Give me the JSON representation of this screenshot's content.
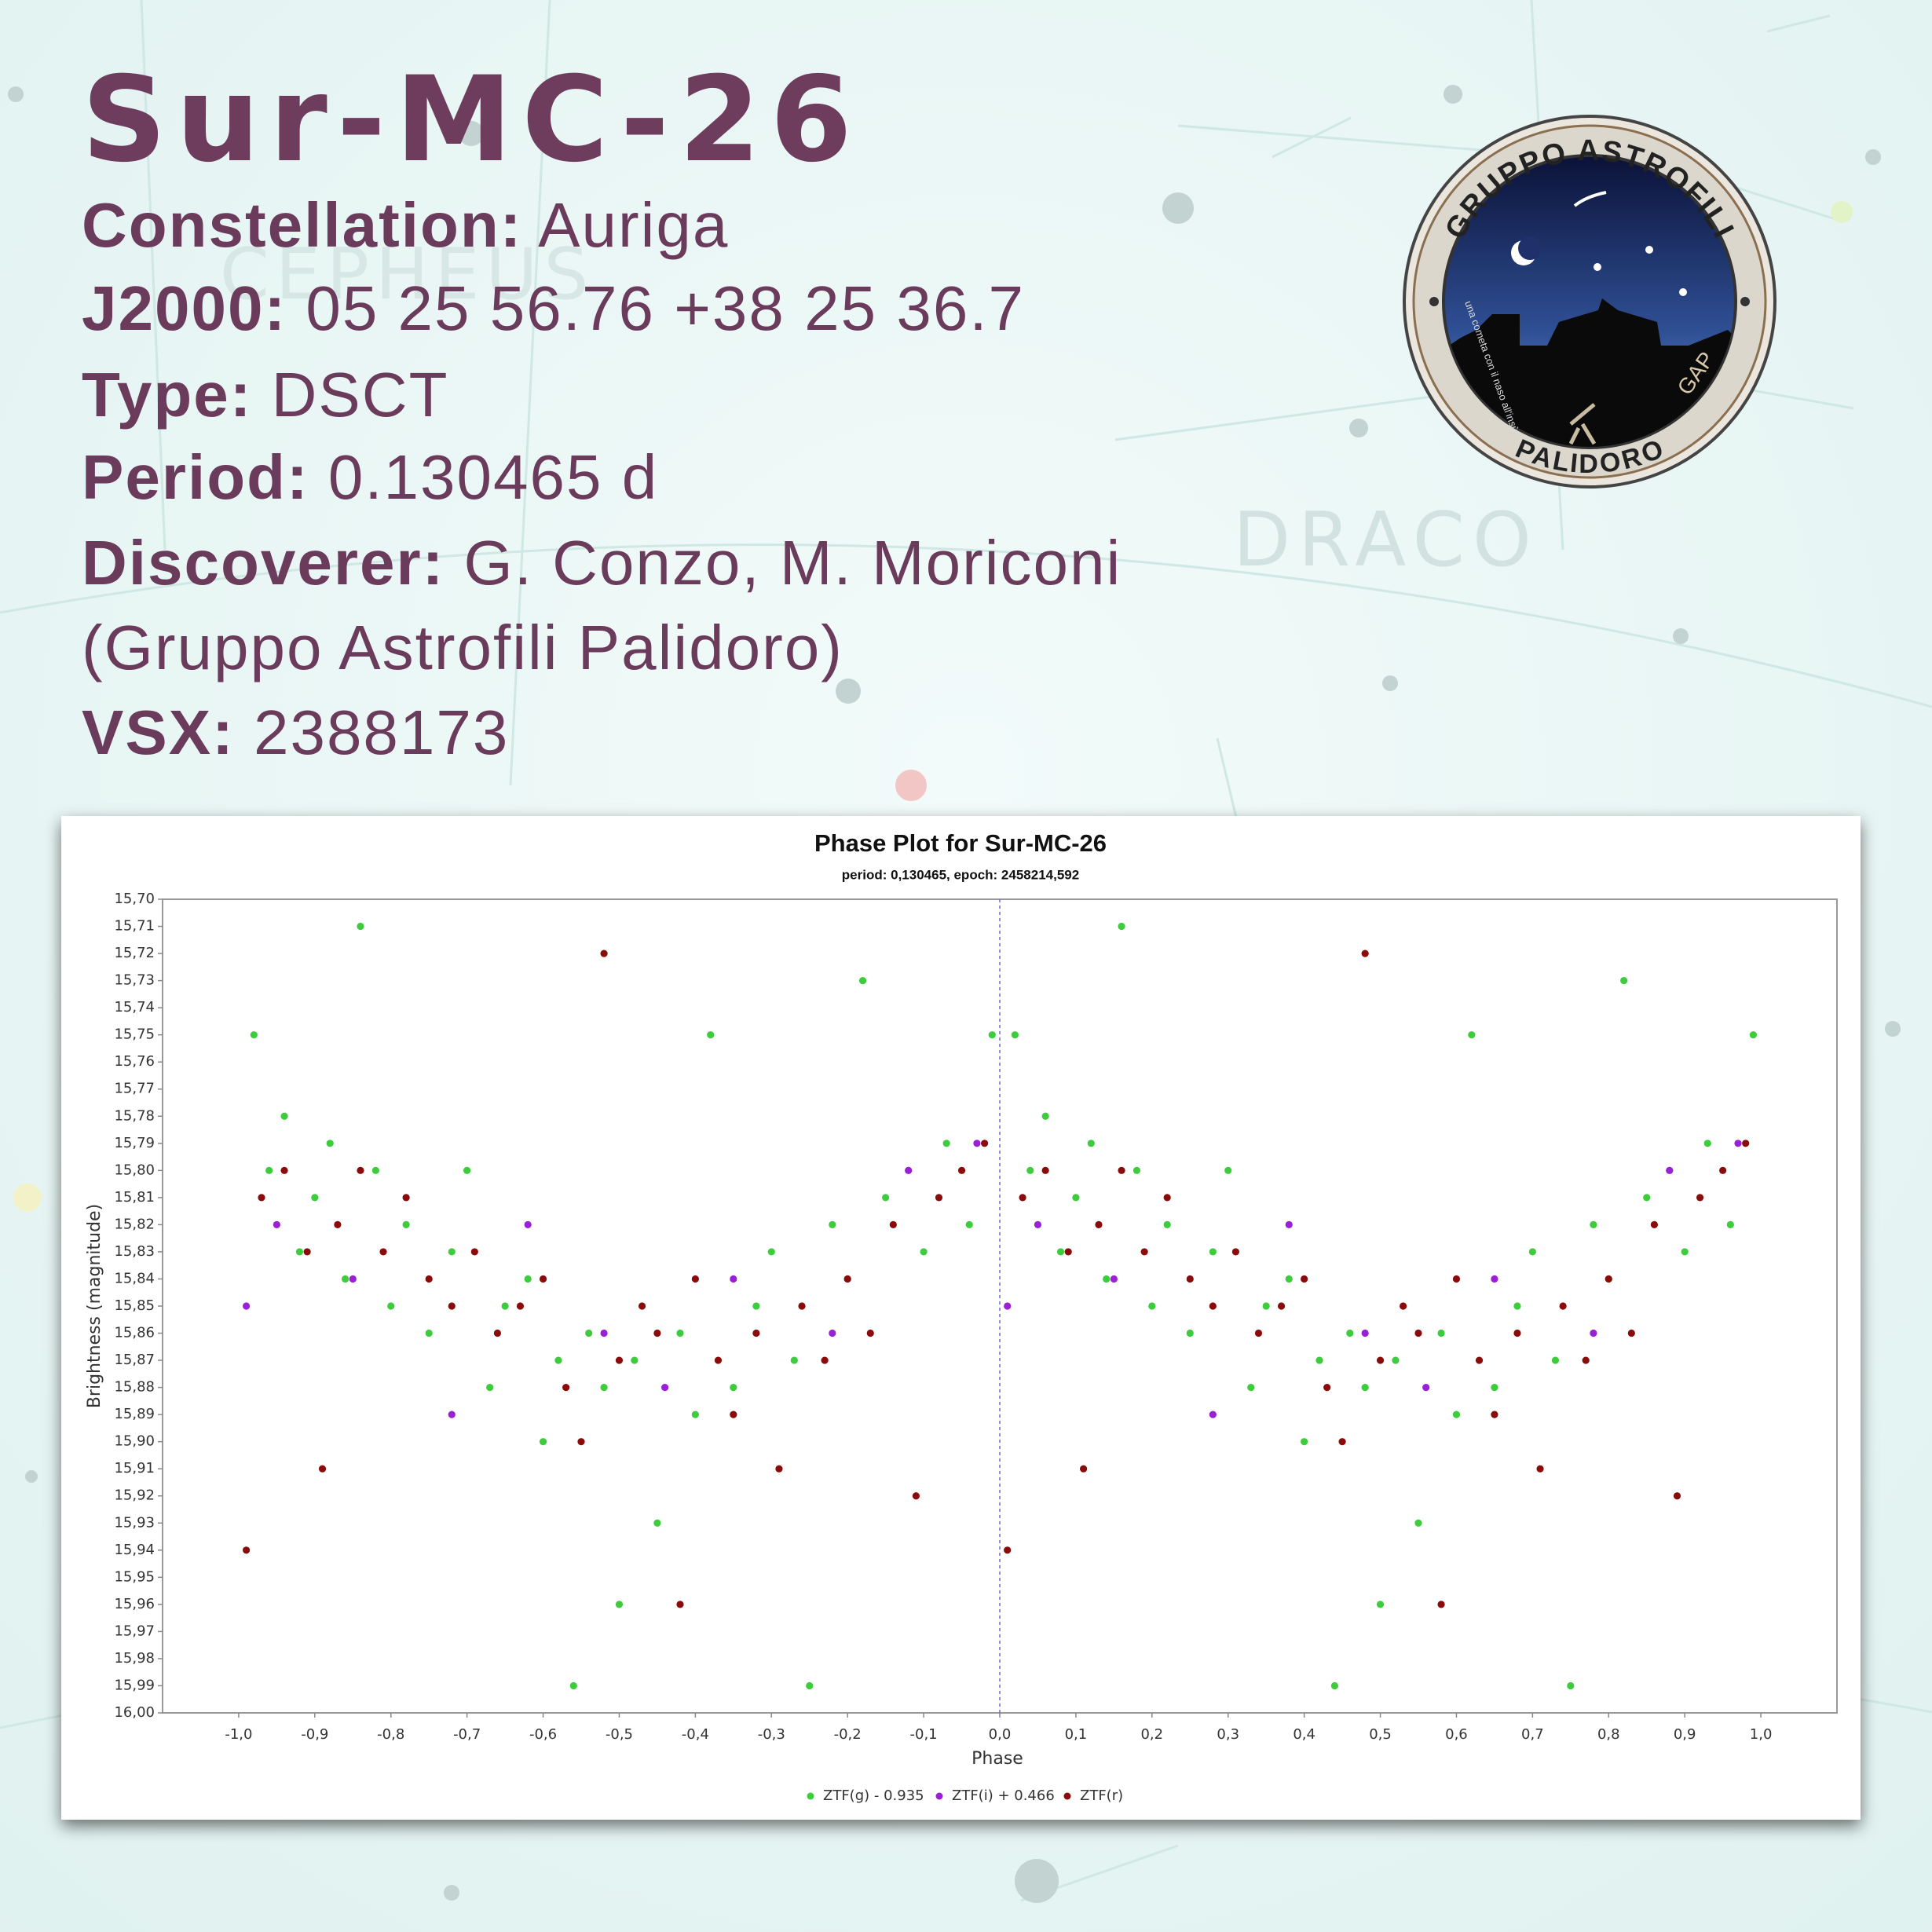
{
  "header": {
    "title": "Sur-MC-26",
    "fields": [
      {
        "label": "Constellation:",
        "value": "Auriga"
      },
      {
        "label": "J2000:",
        "value": "05 25 56.76 +38 25 36.7"
      },
      {
        "label": "Type:",
        "value": "DSCT"
      },
      {
        "label": "Period:",
        "value": "0.130465 d"
      },
      {
        "label": "Discoverer:",
        "value": "G. Conzo, M. Moriconi"
      }
    ],
    "affiliation": "(Gruppo Astrofili Palidoro)",
    "vsx": {
      "label": "VSX:",
      "value": "2388173"
    }
  },
  "logo": {
    "top": "GRUPPO ASTROFILI",
    "bottom": "PALIDORO",
    "side": "GAP",
    "motto": "una cometa con il naso all'insù"
  },
  "background": {
    "labels": [
      "CEPHEUS",
      "DRACO"
    ]
  },
  "chart_data": {
    "type": "scatter",
    "title": "Phase Plot for Sur-MC-26",
    "subtitle": "period: 0,130465, epoch: 2458214,592",
    "x_label": "Phase",
    "y_label": "Brightness (magnitude)",
    "xlim": [
      -1.1,
      1.1
    ],
    "ylim": [
      15.7,
      16.0
    ],
    "y_inverted": true,
    "grid": false,
    "legend": "bottom",
    "epoch_line": 0,
    "xticks": [
      {
        "value": -1.0,
        "label": "-1,0"
      },
      {
        "value": -0.9,
        "label": "-0,9"
      },
      {
        "value": -0.8,
        "label": "-0,8"
      },
      {
        "value": -0.7,
        "label": "-0,7"
      },
      {
        "value": -0.6,
        "label": "-0,6"
      },
      {
        "value": -0.5,
        "label": "-0,5"
      },
      {
        "value": -0.4,
        "label": "-0,4"
      },
      {
        "value": -0.3,
        "label": "-0,3"
      },
      {
        "value": -0.2,
        "label": "-0,2"
      },
      {
        "value": -0.1,
        "label": "-0,1"
      },
      {
        "value": 0.0,
        "label": "0,0"
      },
      {
        "value": 0.1,
        "label": "0,1"
      },
      {
        "value": 0.2,
        "label": "0,2"
      },
      {
        "value": 0.3,
        "label": "0,3"
      },
      {
        "value": 0.4,
        "label": "0,4"
      },
      {
        "value": 0.5,
        "label": "0,5"
      },
      {
        "value": 0.6,
        "label": "0,6"
      },
      {
        "value": 0.7,
        "label": "0,7"
      },
      {
        "value": 0.8,
        "label": "0,8"
      },
      {
        "value": 0.9,
        "label": "0,9"
      },
      {
        "value": 1.0,
        "label": "1,0"
      }
    ],
    "yticks": [
      {
        "value": 15.7,
        "label": "15,70"
      },
      {
        "value": 15.71,
        "label": "15,71"
      },
      {
        "value": 15.72,
        "label": "15,72"
      },
      {
        "value": 15.73,
        "label": "15,73"
      },
      {
        "value": 15.74,
        "label": "15,74"
      },
      {
        "value": 15.75,
        "label": "15,75"
      },
      {
        "value": 15.76,
        "label": "15,76"
      },
      {
        "value": 15.77,
        "label": "15,77"
      },
      {
        "value": 15.78,
        "label": "15,78"
      },
      {
        "value": 15.79,
        "label": "15,79"
      },
      {
        "value": 15.8,
        "label": "15,80"
      },
      {
        "value": 15.81,
        "label": "15,81"
      },
      {
        "value": 15.82,
        "label": "15,82"
      },
      {
        "value": 15.83,
        "label": "15,83"
      },
      {
        "value": 15.84,
        "label": "15,84"
      },
      {
        "value": 15.85,
        "label": "15,85"
      },
      {
        "value": 15.86,
        "label": "15,86"
      },
      {
        "value": 15.87,
        "label": "15,87"
      },
      {
        "value": 15.88,
        "label": "15,88"
      },
      {
        "value": 15.89,
        "label": "15,89"
      },
      {
        "value": 15.9,
        "label": "15,90"
      },
      {
        "value": 15.91,
        "label": "15,91"
      },
      {
        "value": 15.92,
        "label": "15,92"
      },
      {
        "value": 15.93,
        "label": "15,93"
      },
      {
        "value": 15.94,
        "label": "15,94"
      },
      {
        "value": 15.95,
        "label": "15,95"
      },
      {
        "value": 15.96,
        "label": "15,96"
      },
      {
        "value": 15.97,
        "label": "15,97"
      },
      {
        "value": 15.98,
        "label": "15,98"
      },
      {
        "value": 15.99,
        "label": "15,99"
      },
      {
        "value": 16.0,
        "label": "16,00"
      }
    ],
    "series": [
      {
        "name": "ZTF(g) - 0.935",
        "color": "#3ccc3c",
        "x": [
          -0.98,
          -0.96,
          -0.94,
          -0.92,
          -0.9,
          -0.88,
          -0.86,
          -0.84,
          -0.82,
          -0.8,
          -0.78,
          -0.75,
          -0.72,
          -0.7,
          -0.67,
          -0.65,
          -0.62,
          -0.6,
          -0.58,
          -0.56,
          -0.54,
          -0.52,
          -0.5,
          -0.48,
          -0.45,
          -0.42,
          -0.4,
          -0.38,
          -0.35,
          -0.32,
          -0.3,
          -0.27,
          -0.25,
          -0.22,
          -0.2,
          -0.18,
          -0.15,
          -0.12,
          -0.1,
          -0.07,
          -0.04,
          -0.01,
          0.02,
          0.04,
          0.06,
          0.08,
          0.1,
          0.12,
          0.14,
          0.16,
          0.18,
          0.2,
          0.22,
          0.25,
          0.28,
          0.3,
          0.33,
          0.35,
          0.38,
          0.4,
          0.42,
          0.44,
          0.46,
          0.48,
          0.5,
          0.52,
          0.55,
          0.58,
          0.6,
          0.62,
          0.65,
          0.68,
          0.7,
          0.73,
          0.75,
          0.78,
          0.8,
          0.82,
          0.85,
          0.88,
          0.9,
          0.93,
          0.96,
          0.99
        ],
        "values": [
          15.75,
          15.8,
          15.78,
          15.83,
          15.81,
          15.79,
          15.84,
          15.71,
          15.8,
          15.85,
          15.82,
          15.86,
          15.83,
          15.8,
          15.88,
          15.85,
          15.84,
          15.9,
          15.87,
          15.99,
          15.86,
          15.88,
          15.96,
          15.87,
          15.93,
          15.86,
          15.89,
          15.75,
          15.88,
          15.85,
          15.83,
          15.87,
          15.99,
          15.82,
          15.84,
          15.73,
          15.81,
          15.8,
          15.83,
          15.79,
          15.82,
          15.75,
          15.75,
          15.8,
          15.78,
          15.83,
          15.81,
          15.79,
          15.84,
          15.71,
          15.8,
          15.85,
          15.82,
          15.86,
          15.83,
          15.8,
          15.88,
          15.85,
          15.84,
          15.9,
          15.87,
          15.99,
          15.86,
          15.88,
          15.96,
          15.87,
          15.93,
          15.86,
          15.89,
          15.75,
          15.88,
          15.85,
          15.83,
          15.87,
          15.99,
          15.82,
          15.84,
          15.73,
          15.81,
          15.8,
          15.83,
          15.79,
          15.82,
          15.75
        ]
      },
      {
        "name": "ZTF(i) + 0.466",
        "color": "#9a1fd6",
        "x": [
          -0.99,
          -0.95,
          -0.85,
          -0.72,
          -0.62,
          -0.52,
          -0.44,
          -0.35,
          -0.22,
          -0.12,
          -0.03,
          0.01,
          0.05,
          0.15,
          0.28,
          0.38,
          0.48,
          0.56,
          0.65,
          0.78,
          0.88,
          0.97
        ],
        "values": [
          15.85,
          15.82,
          15.84,
          15.89,
          15.82,
          15.86,
          15.88,
          15.84,
          15.86,
          15.8,
          15.79,
          15.85,
          15.82,
          15.84,
          15.89,
          15.82,
          15.86,
          15.88,
          15.84,
          15.86,
          15.8,
          15.79
        ]
      },
      {
        "name": "ZTF(r)",
        "color": "#8b0a0a",
        "x": [
          -0.99,
          -0.97,
          -0.94,
          -0.91,
          -0.89,
          -0.87,
          -0.84,
          -0.81,
          -0.78,
          -0.75,
          -0.72,
          -0.69,
          -0.66,
          -0.63,
          -0.6,
          -0.57,
          -0.55,
          -0.52,
          -0.5,
          -0.47,
          -0.45,
          -0.42,
          -0.4,
          -0.37,
          -0.35,
          -0.32,
          -0.29,
          -0.26,
          -0.23,
          -0.2,
          -0.17,
          -0.14,
          -0.11,
          -0.08,
          -0.05,
          -0.02,
          0.01,
          0.03,
          0.06,
          0.09,
          0.11,
          0.13,
          0.16,
          0.19,
          0.22,
          0.25,
          0.28,
          0.31,
          0.34,
          0.37,
          0.4,
          0.43,
          0.45,
          0.48,
          0.5,
          0.53,
          0.55,
          0.58,
          0.6,
          0.63,
          0.65,
          0.68,
          0.71,
          0.74,
          0.77,
          0.8,
          0.83,
          0.86,
          0.89,
          0.92,
          0.95,
          0.98
        ],
        "values": [
          15.94,
          15.81,
          15.8,
          15.83,
          15.91,
          15.82,
          15.8,
          15.83,
          15.81,
          15.84,
          15.85,
          15.83,
          15.86,
          15.85,
          15.84,
          15.88,
          15.9,
          15.72,
          15.87,
          15.85,
          15.86,
          15.96,
          15.84,
          15.87,
          15.89,
          15.86,
          15.91,
          15.85,
          15.87,
          15.84,
          15.86,
          15.82,
          15.92,
          15.81,
          15.8,
          15.79,
          15.94,
          15.81,
          15.8,
          15.83,
          15.91,
          15.82,
          15.8,
          15.83,
          15.81,
          15.84,
          15.85,
          15.83,
          15.86,
          15.85,
          15.84,
          15.88,
          15.9,
          15.72,
          15.87,
          15.85,
          15.86,
          15.96,
          15.84,
          15.87,
          15.89,
          15.86,
          15.91,
          15.85,
          15.87,
          15.84,
          15.86,
          15.82,
          15.92,
          15.81,
          15.8,
          15.79
        ]
      }
    ]
  }
}
